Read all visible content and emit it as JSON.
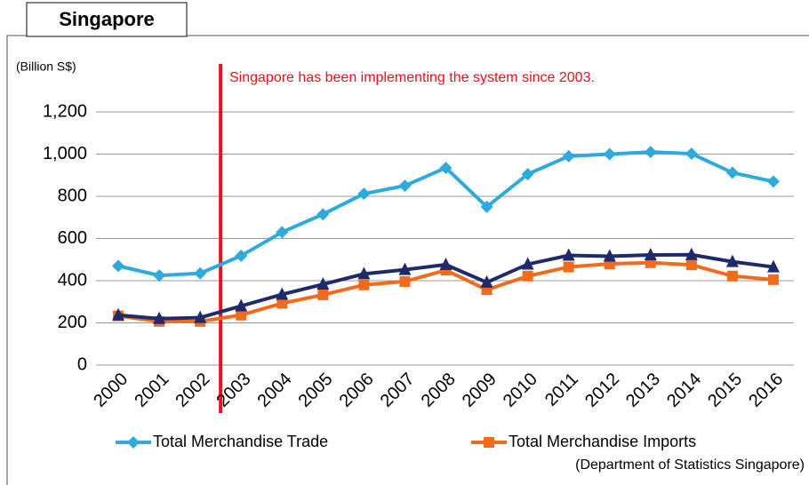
{
  "chart_data": {
    "type": "line",
    "title": "Singapore",
    "y_label": "(Billion S$)",
    "annotation": "Singapore has been implementing the system since 2003.",
    "source": "(Department of Statistics Singapore)",
    "categories": [
      "2000",
      "2001",
      "2002",
      "2003",
      "2004",
      "2005",
      "2006",
      "2007",
      "2008",
      "2009",
      "2010",
      "2011",
      "2012",
      "2013",
      "2014",
      "2015",
      "2016"
    ],
    "series": [
      {
        "name": "Total Merchandise Trade",
        "color": "#2eaadc",
        "marker": "diamond",
        "values": [
          470,
          425,
          435,
          518,
          630,
          715,
          812,
          850,
          935,
          750,
          905,
          990,
          1000,
          1010,
          1002,
          912,
          870
        ]
      },
      {
        "color": "#1f2a6b",
        "marker": "triangle",
        "values": [
          237,
          220,
          225,
          280,
          335,
          383,
          432,
          452,
          476,
          392,
          478,
          520,
          516,
          522,
          523,
          490,
          465
        ]
      },
      {
        "name": "Total Merchandise Imports",
        "color": "#f26a1b",
        "marker": "square",
        "values": [
          233,
          207,
          207,
          237,
          293,
          333,
          380,
          396,
          450,
          357,
          422,
          465,
          480,
          485,
          475,
          422,
          405
        ]
      }
    ],
    "ylim": [
      0,
      1200
    ],
    "yticks": [
      0,
      200,
      400,
      600,
      800,
      {
        "value": 1000,
        "label": "1,000"
      },
      {
        "value": 1200,
        "label": "1,200"
      }
    ],
    "grid": true
  }
}
